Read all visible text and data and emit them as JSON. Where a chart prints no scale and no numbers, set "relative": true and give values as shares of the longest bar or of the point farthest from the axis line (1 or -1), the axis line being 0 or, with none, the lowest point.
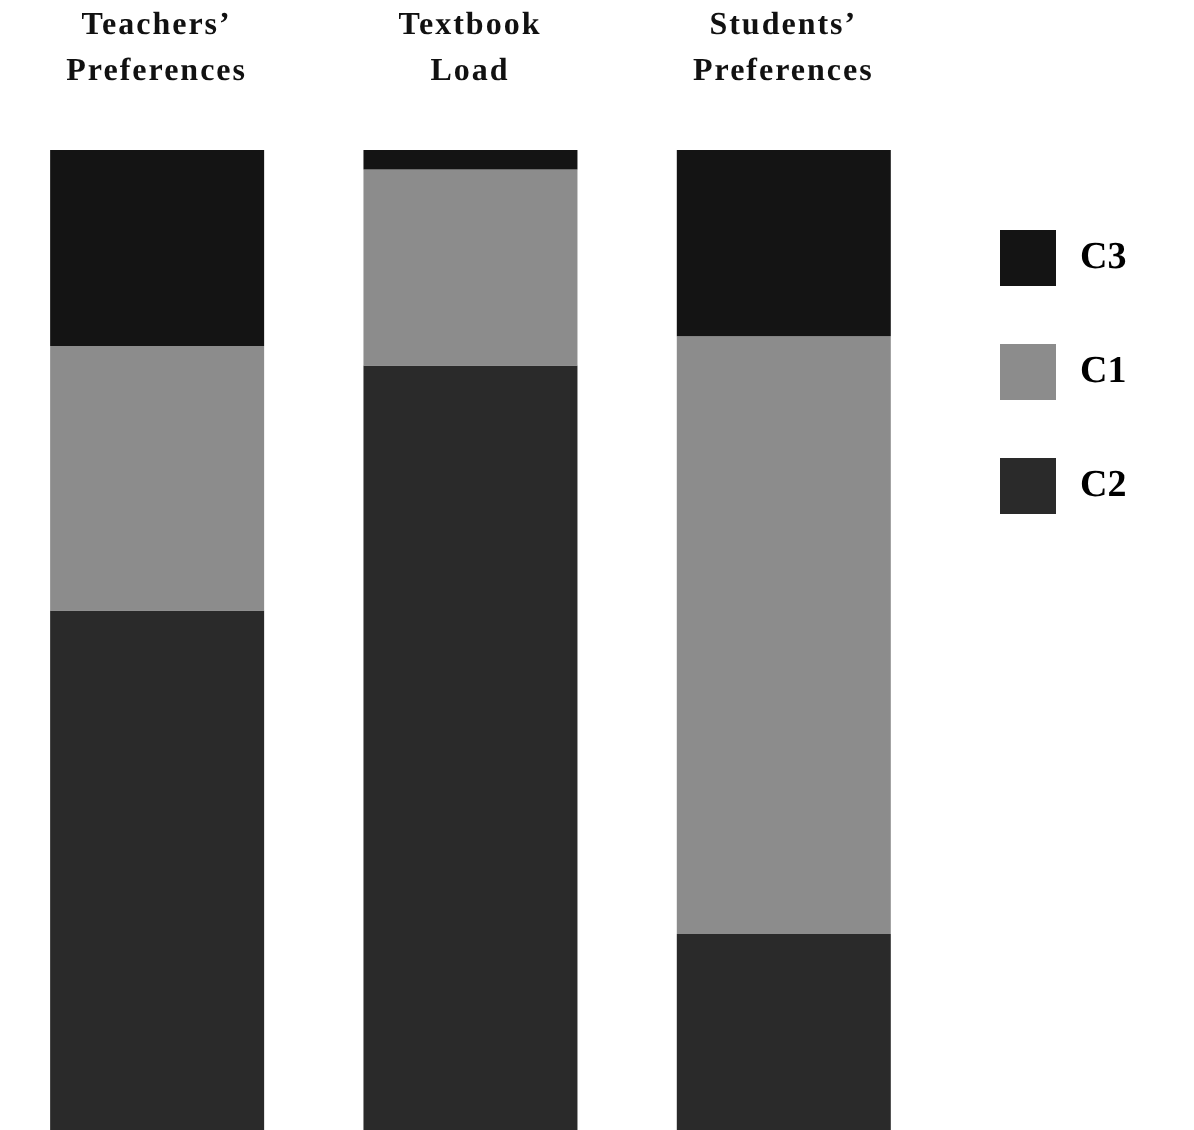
{
  "chart_data": {
    "type": "bar",
    "stacked": true,
    "relative": true,
    "legend": "right",
    "categories": [
      "Teachers’ Preferences",
      "Textbook Load",
      "Students’ Preferences"
    ],
    "series": [
      {
        "name": "C2",
        "color": "#2a2a2a",
        "values": [
          0.53,
          0.78,
          0.2
        ]
      },
      {
        "name": "C1",
        "color": "#8c8c8c",
        "values": [
          0.27,
          0.2,
          0.61
        ]
      },
      {
        "name": "C3",
        "color": "#141414",
        "values": [
          0.2,
          0.02,
          0.19
        ]
      }
    ]
  }
}
